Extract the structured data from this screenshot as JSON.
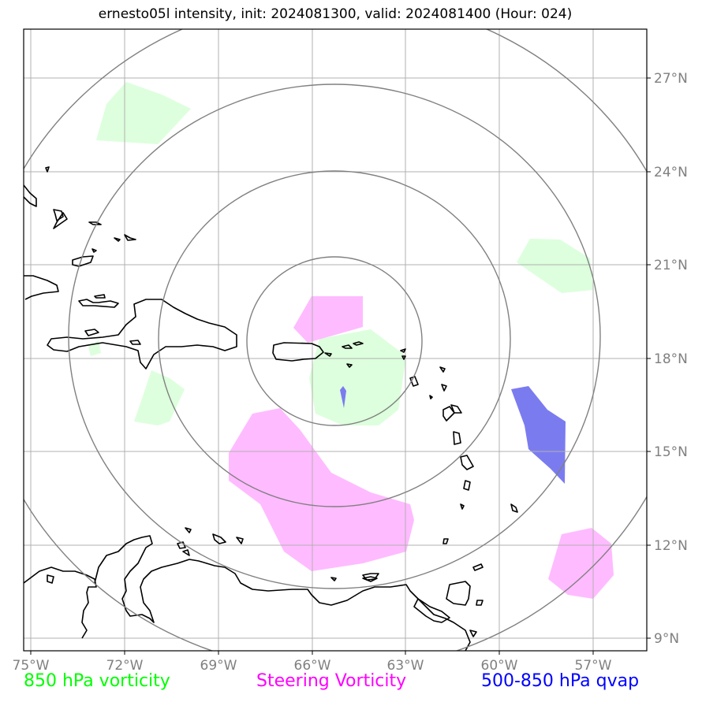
{
  "title": "ernesto05l intensity, init: 2024081300, valid: 2024081400 (Hour: 024)",
  "map": {
    "lon_ticks": [
      "75°W",
      "72°W",
      "69°W",
      "66°W",
      "63°W",
      "60°W",
      "57°W"
    ],
    "lat_ticks": [
      "27°N",
      "24°N",
      "21°N",
      "18°N",
      "15°N",
      "12°N",
      "9°N"
    ],
    "colors": {
      "vorticity_850": "#ddffdd",
      "steering_vorticity": "#ffbbff",
      "qvap": "#7b7bf0",
      "rings": "#808080",
      "grid": "#b0b0b0",
      "coast": "#000000"
    }
  },
  "legend": {
    "vorticity_850": {
      "label": "850 hPa vorticity",
      "color": "#00ff00"
    },
    "steering": {
      "label": "Steering Vorticity",
      "color": "#ff00ff"
    },
    "qvap": {
      "label": "500-850 hPa qvap",
      "color": "#0000ff"
    }
  }
}
